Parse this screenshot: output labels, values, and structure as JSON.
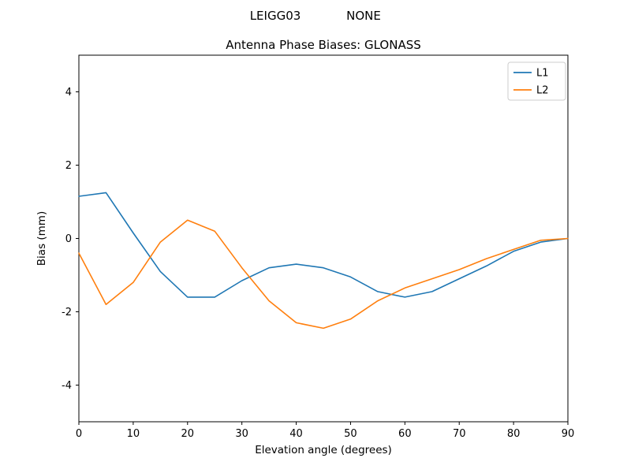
{
  "chart_data": {
    "type": "line",
    "suptitle_left": "LEIGG03",
    "suptitle_right": "NONE",
    "title": "Antenna Phase Biases: GLONASS",
    "xlabel": "Elevation angle (degrees)",
    "ylabel": "Bias (mm)",
    "xlim": [
      0,
      90
    ],
    "ylim": [
      -5,
      5
    ],
    "xticks": [
      0,
      10,
      20,
      30,
      40,
      50,
      60,
      70,
      80,
      90
    ],
    "yticks": [
      -4,
      -2,
      0,
      2,
      4
    ],
    "grid": false,
    "legend_position": "upper right",
    "x": [
      0,
      5,
      10,
      15,
      20,
      25,
      30,
      35,
      40,
      45,
      50,
      55,
      60,
      65,
      70,
      75,
      80,
      85,
      90
    ],
    "series": [
      {
        "name": "L1",
        "color": "#1f77b4",
        "values": [
          1.15,
          1.25,
          0.15,
          -0.9,
          -1.6,
          -1.6,
          -1.15,
          -0.8,
          -0.7,
          -0.8,
          -1.05,
          -1.45,
          -1.6,
          -1.45,
          -1.1,
          -0.75,
          -0.35,
          -0.1,
          0.0
        ]
      },
      {
        "name": "L2",
        "color": "#ff7f0e",
        "values": [
          -0.4,
          -1.8,
          -1.2,
          -0.1,
          0.5,
          0.2,
          -0.8,
          -1.7,
          -2.3,
          -2.45,
          -2.2,
          -1.7,
          -1.35,
          -1.1,
          -0.85,
          -0.55,
          -0.3,
          -0.05,
          0.0
        ]
      }
    ]
  },
  "frame": {
    "axis_color": "#000000",
    "legend_edge_color": "#cccccc",
    "legend_face_color": "#ffffff"
  }
}
